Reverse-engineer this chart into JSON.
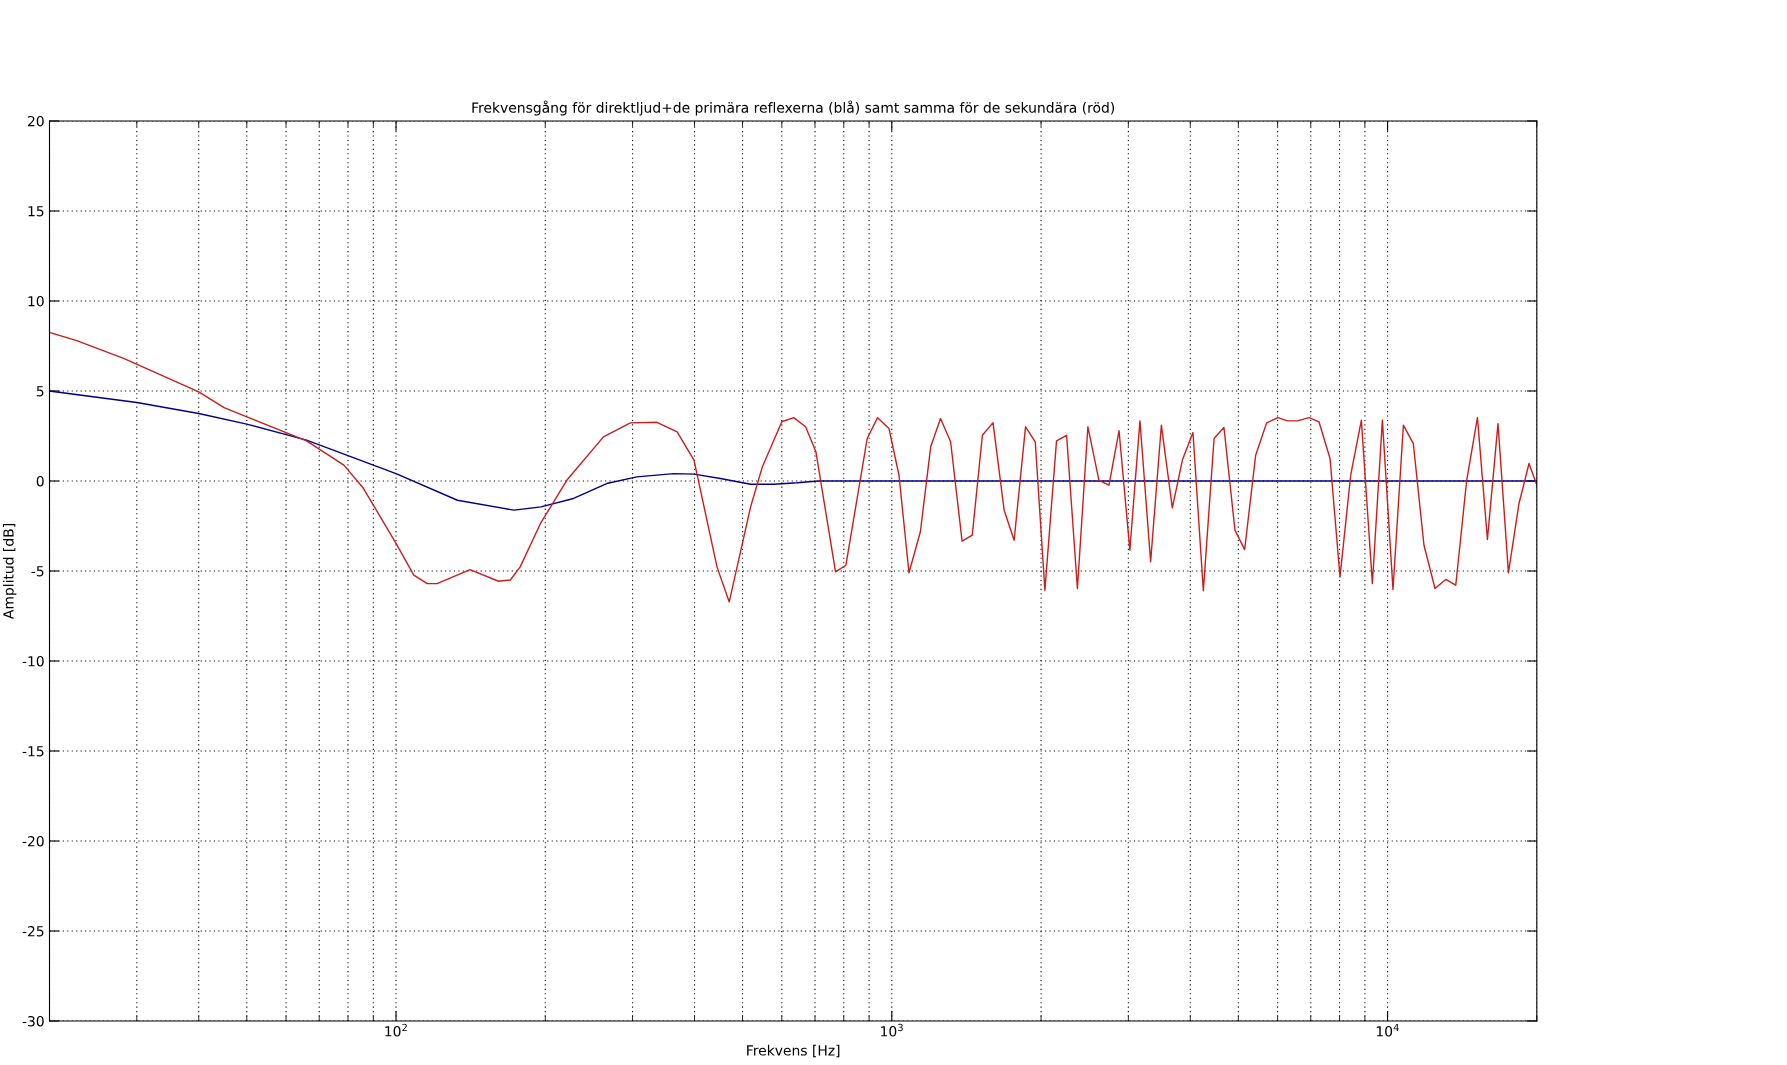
{
  "chart_data": {
    "type": "line",
    "title": "Frekvensgång för direktljud+de primära reflexerna (blå) samt samma för de sekundära (röd)",
    "xlabel": "Frekvens [Hz]",
    "ylabel": "Amplitud [dB]",
    "log": "x",
    "grid": true,
    "xlim": [
      20,
      20000
    ],
    "ylim": [
      -30,
      20
    ],
    "xticks": [
      {
        "value": 100,
        "label": "10$^{2}$"
      },
      {
        "value": 1000,
        "label": "10$^{3}$"
      },
      {
        "value": 10000,
        "label": "10$^{4}$"
      }
    ],
    "yticks": [
      -30,
      -25,
      -20,
      -15,
      -10,
      -5,
      0,
      5,
      10,
      15,
      20
    ],
    "series": [
      {
        "color": "#00008b",
        "x": [
          20,
          30,
          40,
          50,
          66,
          100,
          133,
          173,
          196,
          228,
          266,
          306,
          363,
          399,
          451,
          519,
          578,
          645,
          710,
          1000,
          2000,
          5000,
          10000,
          20000
        ],
        "values": [
          5.0,
          4.36,
          3.75,
          3.16,
          2.27,
          0.41,
          -1.07,
          -1.62,
          -1.44,
          -0.97,
          -0.14,
          0.23,
          0.41,
          0.38,
          0.14,
          -0.18,
          -0.18,
          -0.1,
          0.0,
          0.0,
          0.0,
          0.0,
          0.0,
          0.0
        ]
      },
      {
        "color": "#c81e1e",
        "x": [
          20,
          22.7,
          28.3,
          40,
          45,
          50,
          66,
          78.5,
          86,
          100,
          108.6,
          115.6,
          121,
          141,
          161,
          170,
          178,
          195.6,
          221,
          262,
          297,
          336,
          369,
          399,
          444,
          470,
          519,
          548,
          600,
          634,
          670,
          703,
          770,
          808,
          892,
          936,
          987,
          1034,
          1083,
          1142,
          1198,
          1254,
          1314,
          1386,
          1453,
          1523,
          1600,
          1685,
          1765,
          1861,
          1947,
          2036,
          2149,
          2252,
          2368,
          2486,
          2617,
          2742,
          2873,
          3021,
          3166,
          3327,
          3497,
          3680,
          3856,
          4050,
          4250,
          4467,
          4677,
          4922,
          5149,
          5419,
          5702,
          6012,
          6280,
          6577,
          6943,
          7271,
          7655,
          8017,
          8426,
          8854,
          9318,
          9761,
          10254,
          10762,
          11270,
          11842,
          12466,
          13098,
          13725,
          14440,
          15180,
          15900,
          16700,
          17530,
          18410,
          19290,
          20000
        ],
        "values": [
          8.25,
          7.8,
          6.8,
          4.95,
          4.08,
          3.56,
          2.23,
          0.88,
          -0.42,
          -3.47,
          -5.23,
          -5.7,
          -5.7,
          -4.92,
          -5.57,
          -5.5,
          -4.77,
          -2.36,
          0.04,
          2.45,
          3.23,
          3.26,
          2.73,
          1.16,
          -4.77,
          -6.72,
          -1.44,
          0.78,
          3.29,
          3.52,
          3.01,
          1.62,
          -5.05,
          -4.68,
          2.36,
          3.52,
          2.91,
          0.32,
          -5.1,
          -2.82,
          1.9,
          3.47,
          2.18,
          -3.34,
          -3.01,
          2.54,
          3.24,
          -1.62,
          -3.29,
          3.01,
          2.18,
          -6.07,
          2.23,
          2.54,
          -5.97,
          3.01,
          0.04,
          -0.23,
          2.79,
          -3.84,
          3.34,
          -4.49,
          3.1,
          -1.49,
          1.16,
          2.69,
          -6.1,
          2.36,
          2.97,
          -2.73,
          -3.81,
          1.43,
          3.23,
          3.52,
          3.34,
          3.34,
          3.52,
          3.29,
          1.25,
          -5.33,
          0.32,
          3.38,
          -5.7,
          3.38,
          -6.03,
          3.1,
          2.08,
          -3.57,
          -5.97,
          -5.47,
          -5.79,
          0.04,
          3.52,
          -3.25,
          3.19,
          -5.1,
          -1.25,
          0.97,
          -0.23
        ]
      }
    ]
  }
}
